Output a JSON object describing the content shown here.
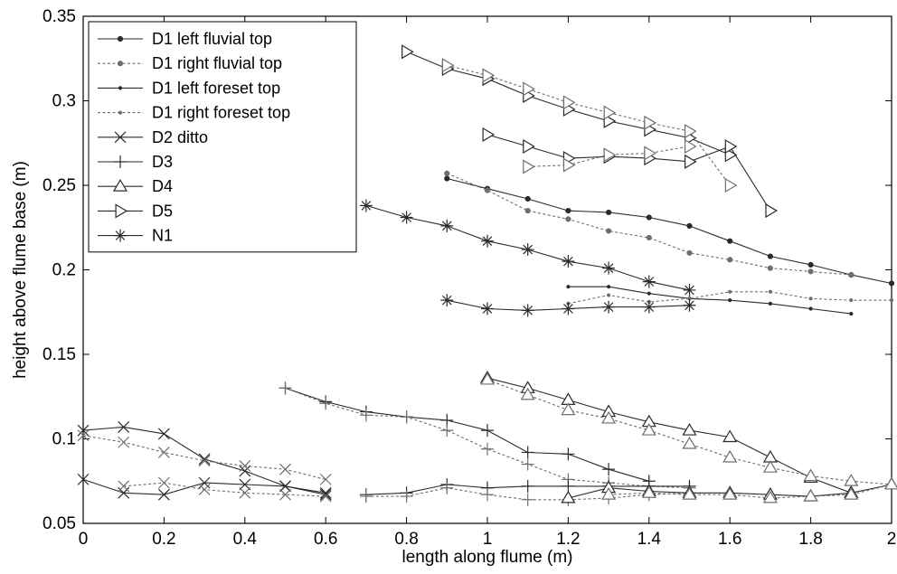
{
  "chart_data": {
    "type": "line",
    "xlabel": "length along flume (m)",
    "ylabel": "height above flume base (m)",
    "xlim": [
      0,
      2
    ],
    "ylim": [
      0.05,
      0.35
    ],
    "xticks": [
      "0",
      "0.2",
      "0.4",
      "0.6",
      "0.8",
      "1",
      "1.2",
      "1.4",
      "1.6",
      "1.8",
      "2"
    ],
    "yticks": [
      "0.05",
      "0.1",
      "0.15",
      "0.2",
      "0.25",
      "0.3",
      "0.35"
    ],
    "grid": false,
    "legend_position": "top-left",
    "legend": [
      {
        "label": "D1 left fluvial top",
        "marker": "dot",
        "dash": false
      },
      {
        "label": "D1 right fluvial top",
        "marker": "dot",
        "dash": true
      },
      {
        "label": "D1 left foreset top",
        "marker": "point",
        "dash": false
      },
      {
        "label": "D1 right foreset top",
        "marker": "point",
        "dash": true
      },
      {
        "label": "D2 ditto",
        "marker": "x",
        "dash": false
      },
      {
        "label": "D3",
        "marker": "plus",
        "dash": false
      },
      {
        "label": "D4",
        "marker": "triangle-up",
        "dash": false
      },
      {
        "label": "D5",
        "marker": "triangle-right",
        "dash": false
      },
      {
        "label": "N1",
        "marker": "star",
        "dash": false
      }
    ],
    "series": [
      {
        "group": "D1",
        "marker": "dot",
        "dash": false,
        "x": [
          0.9,
          1.0,
          1.1,
          1.2,
          1.3,
          1.4,
          1.5,
          1.6,
          1.7,
          1.8,
          1.9,
          2.0
        ],
        "y": [
          0.254,
          0.248,
          0.242,
          0.235,
          0.234,
          0.231,
          0.226,
          0.217,
          0.208,
          0.203,
          0.197,
          0.192
        ]
      },
      {
        "group": "D1",
        "marker": "dot",
        "dash": true,
        "x": [
          0.9,
          1.0,
          1.1,
          1.2,
          1.3,
          1.4,
          1.5,
          1.6,
          1.7,
          1.8,
          1.9
        ],
        "y": [
          0.257,
          0.247,
          0.235,
          0.23,
          0.223,
          0.219,
          0.21,
          0.206,
          0.201,
          0.199,
          0.197
        ]
      },
      {
        "group": "D1",
        "marker": "point",
        "dash": false,
        "x": [
          1.2,
          1.3,
          1.4,
          1.5,
          1.6,
          1.7,
          1.8,
          1.9
        ],
        "y": [
          0.19,
          0.19,
          0.186,
          0.183,
          0.182,
          0.18,
          0.177,
          0.174
        ]
      },
      {
        "group": "D1",
        "marker": "point",
        "dash": true,
        "x": [
          1.2,
          1.3,
          1.4,
          1.5,
          1.6,
          1.7,
          1.8,
          1.9,
          2.0
        ],
        "y": [
          0.18,
          0.185,
          0.181,
          0.183,
          0.187,
          0.187,
          0.183,
          0.182,
          0.182
        ]
      },
      {
        "group": "D2",
        "marker": "x",
        "dash": false,
        "x": [
          0.0,
          0.1,
          0.2,
          0.3,
          0.4,
          0.5,
          0.6
        ],
        "y": [
          0.105,
          0.107,
          0.103,
          0.088,
          0.081,
          0.072,
          0.067
        ]
      },
      {
        "group": "D2",
        "marker": "x",
        "dash": true,
        "x": [
          0.0,
          0.1,
          0.2,
          0.3,
          0.4,
          0.5,
          0.6
        ],
        "y": [
          0.102,
          0.098,
          0.092,
          0.087,
          0.084,
          0.082,
          0.076
        ]
      },
      {
        "group": "D2",
        "marker": "x",
        "dash": false,
        "x": [
          0.0,
          0.1,
          0.2,
          0.3,
          0.4,
          0.5,
          0.6
        ],
        "y": [
          0.076,
          0.068,
          0.067,
          0.074,
          0.073,
          0.072,
          0.068
        ]
      },
      {
        "group": "D2",
        "marker": "x",
        "dash": true,
        "x": [
          0.1,
          0.2,
          0.3,
          0.4,
          0.5,
          0.6
        ],
        "y": [
          0.072,
          0.074,
          0.07,
          0.068,
          0.067,
          0.066
        ]
      },
      {
        "group": "D3",
        "marker": "plus",
        "dash": false,
        "x": [
          0.5,
          0.6,
          0.7,
          0.8,
          0.9,
          1.0,
          1.1,
          1.2,
          1.3,
          1.4
        ],
        "y": [
          0.13,
          0.122,
          0.116,
          0.113,
          0.111,
          0.105,
          0.092,
          0.091,
          0.082,
          0.075
        ]
      },
      {
        "group": "D3",
        "marker": "plus",
        "dash": true,
        "x": [
          0.5,
          0.6,
          0.7,
          0.8,
          0.9,
          1.0,
          1.1,
          1.2,
          1.3,
          1.4,
          1.5
        ],
        "y": [
          0.13,
          0.121,
          0.114,
          0.113,
          0.105,
          0.094,
          0.085,
          0.076,
          0.074,
          0.072,
          0.071
        ]
      },
      {
        "group": "D3",
        "marker": "plus",
        "dash": false,
        "x": [
          0.7,
          0.8,
          0.9,
          1.0,
          1.1,
          1.2,
          1.3,
          1.4,
          1.5
        ],
        "y": [
          0.067,
          0.068,
          0.073,
          0.071,
          0.072,
          0.072,
          0.072,
          0.072,
          0.072
        ]
      },
      {
        "group": "D3",
        "marker": "plus",
        "dash": true,
        "x": [
          0.7,
          0.8,
          0.9,
          1.0,
          1.1,
          1.2,
          1.3,
          1.4,
          1.5
        ],
        "y": [
          0.066,
          0.066,
          0.071,
          0.067,
          0.064,
          0.064,
          0.065,
          0.067,
          0.068
        ]
      },
      {
        "group": "D4",
        "marker": "triangle-up",
        "dash": false,
        "x": [
          1.0,
          1.1,
          1.2,
          1.3,
          1.4,
          1.5,
          1.6,
          1.7,
          1.8,
          1.9
        ],
        "y": [
          0.136,
          0.13,
          0.123,
          0.116,
          0.11,
          0.105,
          0.101,
          0.089,
          0.077,
          0.068
        ]
      },
      {
        "group": "D4",
        "marker": "triangle-up",
        "dash": true,
        "x": [
          1.0,
          1.1,
          1.2,
          1.3,
          1.4,
          1.5,
          1.6,
          1.7,
          1.8,
          1.9,
          2.0
        ],
        "y": [
          0.135,
          0.126,
          0.117,
          0.112,
          0.105,
          0.097,
          0.089,
          0.083,
          0.078,
          0.075,
          0.073
        ]
      },
      {
        "group": "D4",
        "marker": "triangle-up",
        "dash": false,
        "x": [
          1.2,
          1.3,
          1.4,
          1.5,
          1.6,
          1.7,
          1.8,
          1.9,
          2.0
        ],
        "y": [
          0.065,
          0.071,
          0.069,
          0.068,
          0.068,
          0.067,
          0.066,
          0.068,
          0.073
        ]
      },
      {
        "group": "D4",
        "marker": "triangle-up",
        "dash": true,
        "x": [
          1.3,
          1.4,
          1.5,
          1.6,
          1.7,
          1.8,
          1.9,
          2.0
        ],
        "y": [
          0.067,
          0.068,
          0.067,
          0.067,
          0.065,
          0.066,
          0.067,
          0.073
        ]
      },
      {
        "group": "D5",
        "marker": "triangle-right",
        "dash": false,
        "x": [
          0.8,
          0.9,
          1.0,
          1.1,
          1.2,
          1.3,
          1.4,
          1.5,
          1.6
        ],
        "y": [
          0.329,
          0.319,
          0.313,
          0.303,
          0.295,
          0.288,
          0.283,
          0.278,
          0.268
        ]
      },
      {
        "group": "D5",
        "marker": "triangle-right",
        "dash": true,
        "x": [
          0.9,
          1.0,
          1.1,
          1.2,
          1.3,
          1.4,
          1.5,
          1.6
        ],
        "y": [
          0.321,
          0.315,
          0.307,
          0.299,
          0.293,
          0.287,
          0.282,
          0.25
        ]
      },
      {
        "group": "D5",
        "marker": "triangle-right",
        "dash": false,
        "x": [
          1.0,
          1.1,
          1.2,
          1.3,
          1.4,
          1.5,
          1.6,
          1.7
        ],
        "y": [
          0.28,
          0.273,
          0.266,
          0.267,
          0.266,
          0.264,
          0.273,
          0.235
        ]
      },
      {
        "group": "D5",
        "marker": "triangle-right",
        "dash": true,
        "x": [
          1.1,
          1.2,
          1.3,
          1.4,
          1.5
        ],
        "y": [
          0.261,
          0.262,
          0.268,
          0.269,
          0.273
        ]
      },
      {
        "group": "N1",
        "marker": "star",
        "dash": false,
        "x": [
          0.7,
          0.8,
          0.9,
          1.0,
          1.1,
          1.2,
          1.3,
          1.4,
          1.5
        ],
        "y": [
          0.238,
          0.231,
          0.226,
          0.217,
          0.212,
          0.205,
          0.201,
          0.193,
          0.188
        ]
      },
      {
        "group": "N1",
        "marker": "star",
        "dash": false,
        "x": [
          0.9,
          1.0,
          1.1,
          1.2,
          1.3,
          1.4,
          1.5
        ],
        "y": [
          0.182,
          0.177,
          0.176,
          0.177,
          0.178,
          0.178,
          0.179
        ]
      }
    ]
  }
}
